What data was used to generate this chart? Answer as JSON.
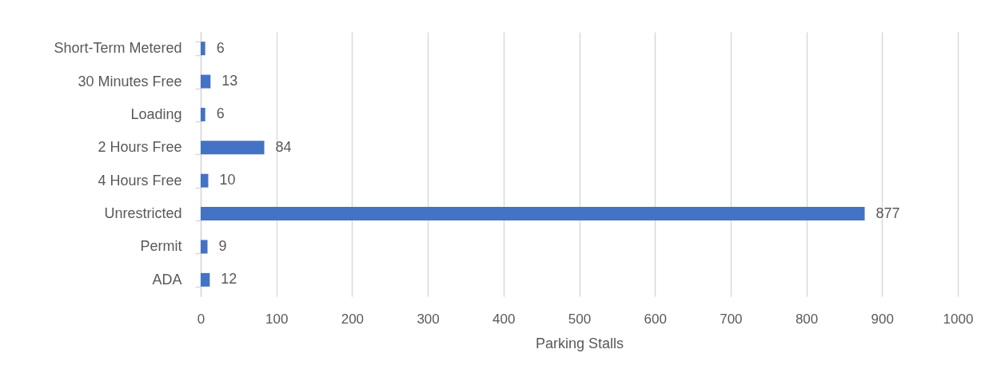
{
  "chart_data": {
    "type": "bar",
    "orientation": "horizontal",
    "xlabel": "Parking Stalls",
    "categories": [
      "Short-Term Metered",
      "30 Minutes Free",
      "Loading",
      "2 Hours Free",
      "4 Hours Free",
      "Unrestricted",
      "Permit",
      "ADA"
    ],
    "values": [
      6,
      13,
      6,
      84,
      10,
      877,
      9,
      12
    ],
    "color": "#4472c4",
    "xlim": [
      0,
      1000
    ],
    "xticks": [
      0,
      100,
      200,
      300,
      400,
      500,
      600,
      700,
      800,
      900,
      1000
    ],
    "grid": "x",
    "data_labels": true
  }
}
